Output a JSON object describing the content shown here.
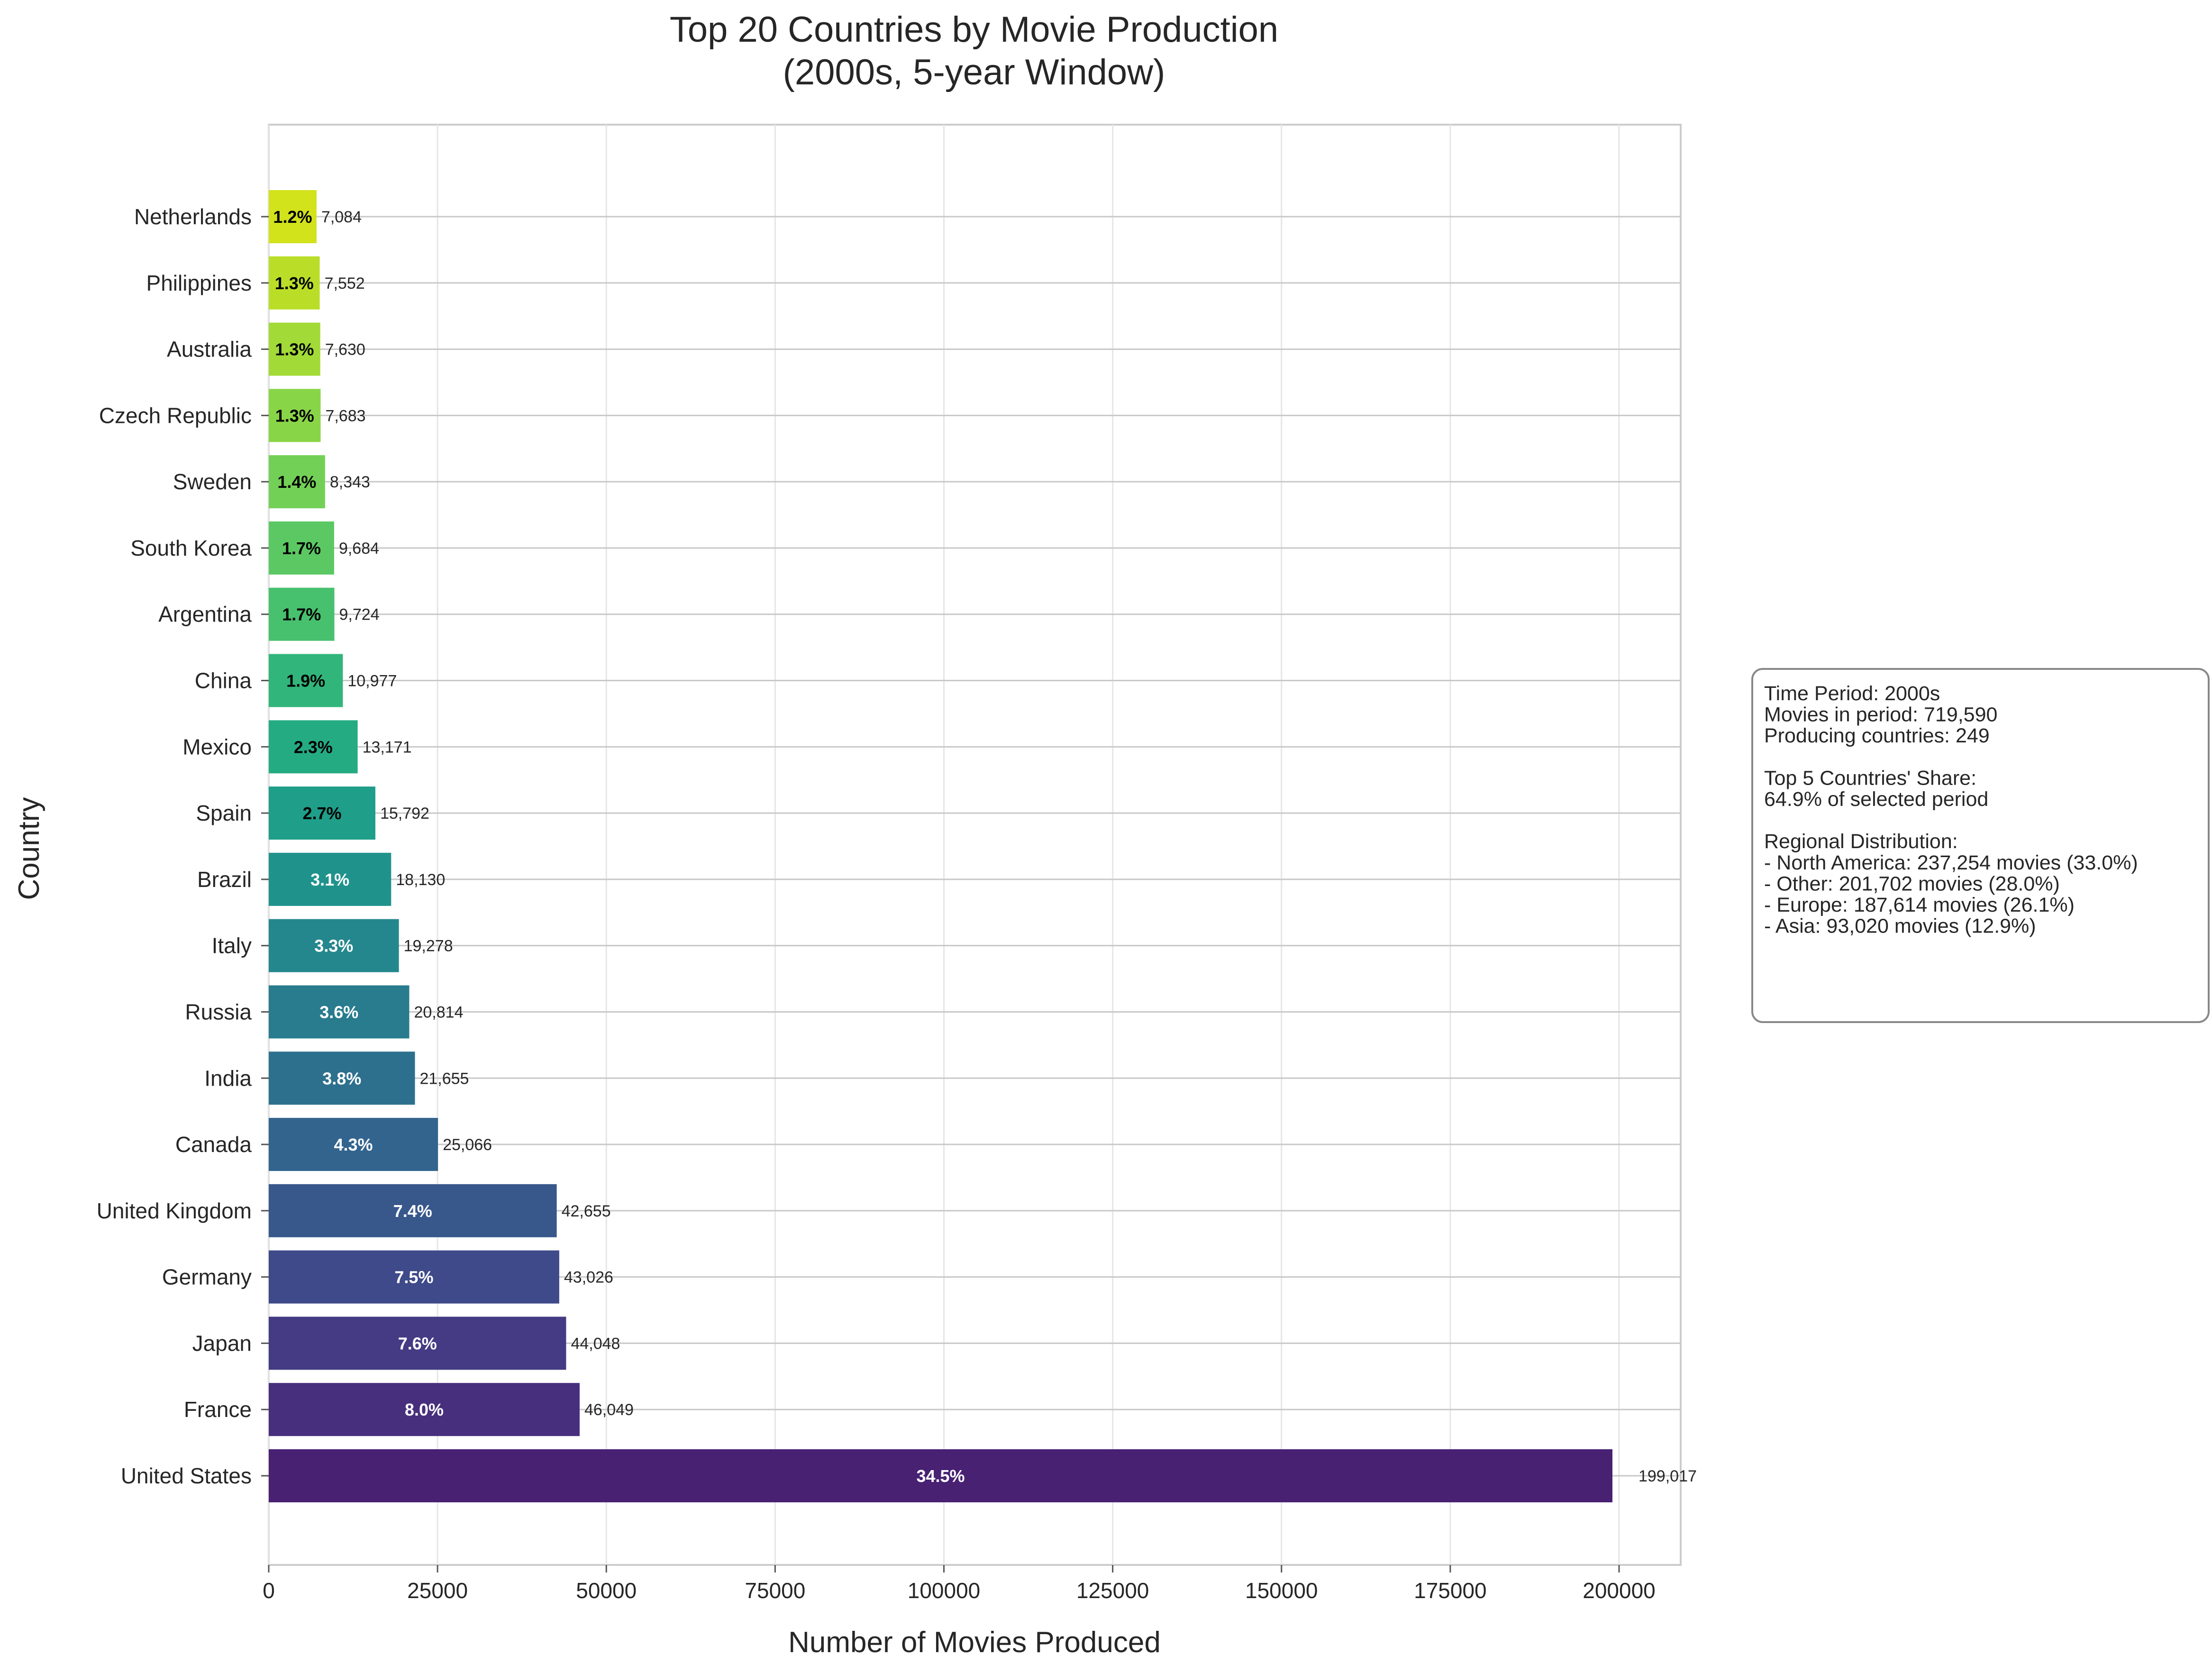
{
  "chart_data": {
    "type": "bar",
    "orientation": "horizontal",
    "title": [
      "Top 20 Countries by Movie Production",
      "(2000s, 5-year Window)"
    ],
    "xlabel": "Number of Movies Produced",
    "ylabel": "Country",
    "xlim": [
      0,
      209000
    ],
    "xticks": [
      0,
      25000,
      50000,
      75000,
      100000,
      125000,
      150000,
      175000,
      200000
    ],
    "xtick_labels": [
      "0",
      "25000",
      "50000",
      "75000",
      "100000",
      "125000",
      "150000",
      "175000",
      "200000"
    ],
    "grid": true,
    "categories": [
      "United States",
      "France",
      "Japan",
      "Germany",
      "United Kingdom",
      "Canada",
      "India",
      "Russia",
      "Italy",
      "Brazil",
      "Spain",
      "Mexico",
      "China",
      "Argentina",
      "South Korea",
      "Sweden",
      "Czech Republic",
      "Australia",
      "Philippines",
      "Netherlands"
    ],
    "values": [
      199017,
      46049,
      44048,
      43026,
      42655,
      25066,
      21655,
      20814,
      19278,
      18130,
      15792,
      13171,
      10977,
      9724,
      9684,
      8343,
      7683,
      7630,
      7552,
      7084
    ],
    "value_labels": [
      "199,017",
      "46,049",
      "44,048",
      "43,026",
      "42,655",
      "25,066",
      "21,655",
      "20,814",
      "19,278",
      "18,130",
      "15,792",
      "13,171",
      "10,977",
      "9,724",
      "9,684",
      "8,343",
      "7,683",
      "7,630",
      "7,552",
      "7,084"
    ],
    "percent_labels": [
      "34.5%",
      "8.0%",
      "7.6%",
      "7.5%",
      "7.4%",
      "4.3%",
      "3.8%",
      "3.6%",
      "3.3%",
      "3.1%",
      "2.7%",
      "2.3%",
      "1.9%",
      "1.7%",
      "1.7%",
      "1.4%",
      "1.3%",
      "1.3%",
      "1.3%",
      "1.2%"
    ],
    "colors": [
      "#482173",
      "#472f7d",
      "#443b84",
      "#3e4a89",
      "#38588c",
      "#32648e",
      "#2d708e",
      "#287c8e",
      "#24878e",
      "#20928c",
      "#1f9e89",
      "#25ab82",
      "#31b57b",
      "#47c16e",
      "#5cc863",
      "#73d056",
      "#89d548",
      "#a2da37",
      "#bade28",
      "#d2e21b"
    ],
    "pct_label_colors": [
      "#ffffff",
      "#ffffff",
      "#ffffff",
      "#ffffff",
      "#ffffff",
      "#ffffff",
      "#ffffff",
      "#ffffff",
      "#ffffff",
      "#ffffff",
      "#000000",
      "#000000",
      "#000000",
      "#000000",
      "#000000",
      "#000000",
      "#000000",
      "#000000",
      "#000000",
      "#000000"
    ]
  },
  "info_box": {
    "lines": [
      "Time Period: 2000s",
      "Movies in period: 719,590",
      "Producing countries: 249",
      "",
      "Top 5 Countries' Share:",
      "64.9% of selected period",
      "",
      "Regional Distribution:",
      "- North America: 237,254 movies (33.0%)",
      "- Other: 201,702 movies (28.0%)",
      "- Europe: 187,614 movies (26.1%)",
      "- Asia: 93,020 movies (12.9%)"
    ]
  }
}
